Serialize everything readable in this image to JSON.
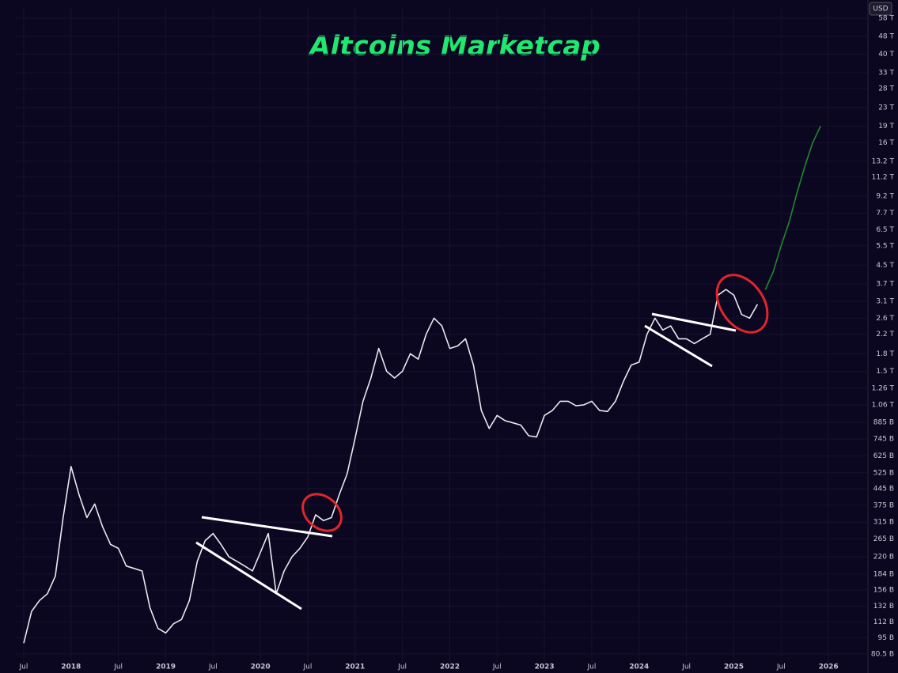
{
  "chart_data": {
    "type": "line",
    "title": "Altcoins Marketcap",
    "currency": "USD",
    "log_scale": true,
    "grid": true,
    "xlim": [
      "2017-06",
      "2026-06"
    ],
    "xticks": [
      {
        "value": "2017-07",
        "label": "Jul"
      },
      {
        "value": "2018-01",
        "label": "2018"
      },
      {
        "value": "2018-07",
        "label": "Jul"
      },
      {
        "value": "2019-01",
        "label": "2019"
      },
      {
        "value": "2019-07",
        "label": "Jul"
      },
      {
        "value": "2020-01",
        "label": "2020"
      },
      {
        "value": "2020-07",
        "label": "Jul"
      },
      {
        "value": "2021-01",
        "label": "2021"
      },
      {
        "value": "2021-07",
        "label": "Jul"
      },
      {
        "value": "2022-01",
        "label": "2022"
      },
      {
        "value": "2022-07",
        "label": "Jul"
      },
      {
        "value": "2023-01",
        "label": "2023"
      },
      {
        "value": "2023-07",
        "label": "Jul"
      },
      {
        "value": "2024-01",
        "label": "2024"
      },
      {
        "value": "2024-07",
        "label": "Jul"
      },
      {
        "value": "2025-01",
        "label": "2025"
      },
      {
        "value": "2025-07",
        "label": "Jul"
      },
      {
        "value": "2026-01",
        "label": "2026"
      }
    ],
    "ylim": [
      73.5,
      64500
    ],
    "yticks": [
      {
        "value": 80.5,
        "label": "80.5 B"
      },
      {
        "value": 95,
        "label": "95 B"
      },
      {
        "value": 112,
        "label": "112 B"
      },
      {
        "value": 132,
        "label": "132 B"
      },
      {
        "value": 156,
        "label": "156 B"
      },
      {
        "value": 184,
        "label": "184 B"
      },
      {
        "value": 220,
        "label": "220 B"
      },
      {
        "value": 265,
        "label": "265 B"
      },
      {
        "value": 315,
        "label": "315 B"
      },
      {
        "value": 375,
        "label": "375 B"
      },
      {
        "value": 445,
        "label": "445 B"
      },
      {
        "value": 525,
        "label": "525 B"
      },
      {
        "value": 625,
        "label": "625 B"
      },
      {
        "value": 745,
        "label": "745 B"
      },
      {
        "value": 885,
        "label": "885 B"
      },
      {
        "value": 1060,
        "label": "1.06 T"
      },
      {
        "value": 1260,
        "label": "1.26 T"
      },
      {
        "value": 1500,
        "label": "1.5 T"
      },
      {
        "value": 1800,
        "label": "1.8 T"
      },
      {
        "value": 2200,
        "label": "2.2 T"
      },
      {
        "value": 2600,
        "label": "2.6 T"
      },
      {
        "value": 3100,
        "label": "3.1 T"
      },
      {
        "value": 3700,
        "label": "3.7 T"
      },
      {
        "value": 4500,
        "label": "4.5 T"
      },
      {
        "value": 5500,
        "label": "5.5 T"
      },
      {
        "value": 6500,
        "label": "6.5 T"
      },
      {
        "value": 7700,
        "label": "7.7 T"
      },
      {
        "value": 9200,
        "label": "9.2 T"
      },
      {
        "value": 11200,
        "label": "11.2 T"
      },
      {
        "value": 13200,
        "label": "13.2 T"
      },
      {
        "value": 16000,
        "label": "16 T"
      },
      {
        "value": 19000,
        "label": "19 T"
      },
      {
        "value": 23000,
        "label": "23 T"
      },
      {
        "value": 28000,
        "label": "28 T"
      },
      {
        "value": 33000,
        "label": "33 T"
      },
      {
        "value": 40000,
        "label": "40 T"
      },
      {
        "value": 48000,
        "label": "48 T"
      },
      {
        "value": 58000,
        "label": "58 T"
      }
    ],
    "series": [
      {
        "color": "#e8e8ee",
        "x": [
          "2017-07",
          "2017-08",
          "2017-09",
          "2017-10",
          "2017-11",
          "2017-12",
          "2018-01",
          "2018-02",
          "2018-03",
          "2018-04",
          "2018-05",
          "2018-06",
          "2018-07",
          "2018-08",
          "2018-09",
          "2018-10",
          "2018-11",
          "2018-12",
          "2019-01",
          "2019-02",
          "2019-03",
          "2019-04",
          "2019-05",
          "2019-06",
          "2019-07",
          "2019-08",
          "2019-09",
          "2019-10",
          "2019-11",
          "2019-12",
          "2020-01",
          "2020-02",
          "2020-03",
          "2020-04",
          "2020-05",
          "2020-06",
          "2020-07",
          "2020-08",
          "2020-09",
          "2020-10",
          "2020-11",
          "2020-12",
          "2021-01",
          "2021-02",
          "2021-03",
          "2021-04",
          "2021-05",
          "2021-06",
          "2021-07",
          "2021-08",
          "2021-09",
          "2021-10",
          "2021-11",
          "2021-12",
          "2022-01",
          "2022-02",
          "2022-03",
          "2022-04",
          "2022-05",
          "2022-06",
          "2022-07",
          "2022-08",
          "2022-09",
          "2022-10",
          "2022-11",
          "2022-12",
          "2023-01",
          "2023-02",
          "2023-03",
          "2023-04",
          "2023-05",
          "2023-06",
          "2023-07",
          "2023-08",
          "2023-09",
          "2023-10",
          "2023-11",
          "2023-12",
          "2024-01",
          "2024-02",
          "2024-03",
          "2024-04",
          "2024-05",
          "2024-06",
          "2024-07",
          "2024-08",
          "2024-09",
          "2024-10",
          "2024-11",
          "2024-12",
          "2025-01",
          "2025-02",
          "2025-03",
          "2025-04"
        ],
        "values": [
          90,
          125,
          140,
          150,
          180,
          330,
          560,
          420,
          330,
          380,
          300,
          250,
          240,
          200,
          195,
          190,
          130,
          105,
          100,
          110,
          115,
          140,
          210,
          260,
          280,
          250,
          220,
          210,
          200,
          190,
          230,
          280,
          150,
          190,
          220,
          240,
          270,
          340,
          320,
          330,
          420,
          520,
          750,
          1100,
          1400,
          1900,
          1500,
          1400,
          1500,
          1800,
          1700,
          2200,
          2600,
          2400,
          1900,
          1950,
          2100,
          1600,
          1000,
          830,
          950,
          900,
          880,
          860,
          770,
          760,
          950,
          1000,
          1100,
          1100,
          1050,
          1060,
          1100,
          1000,
          990,
          1100,
          1350,
          1600,
          1650,
          2200,
          2600,
          2300,
          2400,
          2100,
          2100,
          2000,
          2100,
          2200,
          3300,
          3500,
          3300,
          2700,
          2600,
          3000
        ]
      },
      {
        "color": "#1f8a2c",
        "x": [
          "2025-05",
          "2025-06",
          "2025-07",
          "2025-08",
          "2025-09",
          "2025-10",
          "2025-11",
          "2025-12"
        ],
        "values": [
          3500,
          4200,
          5500,
          7000,
          9500,
          12500,
          16000,
          19000
        ]
      }
    ]
  }
}
